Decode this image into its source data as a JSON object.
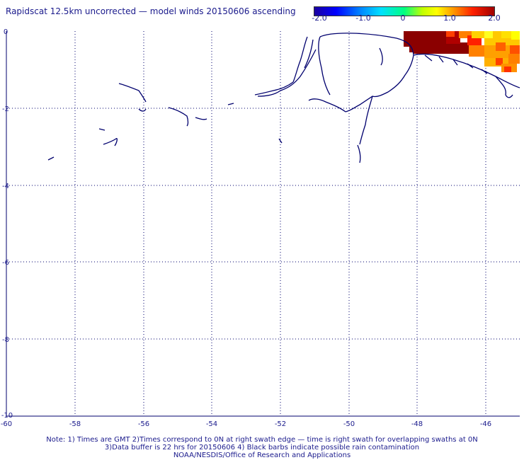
{
  "title": "Rapidscat 12.5km uncorrected — model winds 20150606 ascending",
  "colorbar": {
    "labels": [
      "-2.0",
      "-1.0",
      "0",
      "1.0",
      "2.0"
    ],
    "values": [
      -2.0,
      -1.0,
      0,
      1.0,
      2.0
    ],
    "range": [
      -2.0,
      2.0
    ]
  },
  "axes": {
    "x_ticks": [
      "-60",
      "-58",
      "-56",
      "-54",
      "-52",
      "-50",
      "-48",
      "-46"
    ],
    "y_ticks": [
      "0",
      "-2",
      "-4",
      "-6",
      "-8",
      "-10"
    ],
    "x_range": [
      -60,
      -45
    ],
    "y_range": [
      -10,
      0
    ],
    "grid": true
  },
  "notes": {
    "line1": "Note: 1) Times are GMT 2)Times correspond to 0N at right swath edge — time is right swath for overlapping swaths at 0N",
    "line2": "3)Data buffer is 22 hrs for 20150606 4) Black barbs indicate possible rain contamination",
    "line3": "NOAA/NESDIS/Office of Research and Applications"
  },
  "colors": {
    "text": "#1a1a8c",
    "coastline": "#00006e",
    "grid": "#00006e"
  }
}
